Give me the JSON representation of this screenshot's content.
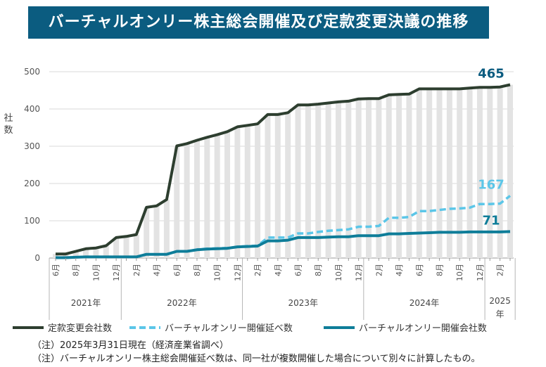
{
  "title": "バーチャルオンリー株主総会開催及び定款変更決議の推移",
  "notes": [
    "（注）2025年3月31日現在（経済産業省調べ）",
    "（注）バーチャルオンリー株主総会開催延べ数は、同一社が複数開催した場合について別々に計算したもの。"
  ],
  "chart_data": {
    "type": "line",
    "ylabel": "社数",
    "ylim": [
      0,
      500
    ],
    "yticks": [
      0,
      100,
      200,
      300,
      400,
      500
    ],
    "grid": true,
    "legend_position": "bottom",
    "x_months": [
      "2021-06",
      "2021-07",
      "2021-08",
      "2021-09",
      "2021-10",
      "2021-11",
      "2021-12",
      "2022-01",
      "2022-02",
      "2022-03",
      "2022-04",
      "2022-05",
      "2022-06",
      "2022-07",
      "2022-08",
      "2022-09",
      "2022-10",
      "2022-11",
      "2022-12",
      "2023-01",
      "2023-02",
      "2023-03",
      "2023-04",
      "2023-05",
      "2023-06",
      "2023-07",
      "2023-08",
      "2023-09",
      "2023-10",
      "2023-11",
      "2023-12",
      "2024-01",
      "2024-02",
      "2024-03",
      "2024-04",
      "2024-05",
      "2024-06",
      "2024-07",
      "2024-08",
      "2024-09",
      "2024-10",
      "2024-11",
      "2024-12",
      "2025-01",
      "2025-02",
      "2025-03"
    ],
    "tick_labels": [
      {
        "month": "2021-06",
        "label": "6月"
      },
      {
        "month": "2021-08",
        "label": "8月"
      },
      {
        "month": "2021-10",
        "label": "10月"
      },
      {
        "month": "2021-12",
        "label": "12月"
      },
      {
        "month": "2022-02",
        "label": "2月"
      },
      {
        "month": "2022-04",
        "label": "4月"
      },
      {
        "month": "2022-06",
        "label": "6月"
      },
      {
        "month": "2022-08",
        "label": "8月"
      },
      {
        "month": "2022-10",
        "label": "10月"
      },
      {
        "month": "2022-12",
        "label": "12月"
      },
      {
        "month": "2023-02",
        "label": "2月"
      },
      {
        "month": "2023-04",
        "label": "4月"
      },
      {
        "month": "2023-06",
        "label": "6月"
      },
      {
        "month": "2023-08",
        "label": "8月"
      },
      {
        "month": "2023-10",
        "label": "10月"
      },
      {
        "month": "2023-12",
        "label": "12月"
      },
      {
        "month": "2024-02",
        "label": "2月"
      },
      {
        "month": "2024-04",
        "label": "4月"
      },
      {
        "month": "2024-06",
        "label": "6月"
      },
      {
        "month": "2024-08",
        "label": "8月"
      },
      {
        "month": "2024-10",
        "label": "10月"
      },
      {
        "month": "2024-12",
        "label": "12月"
      },
      {
        "month": "2025-02",
        "label": "2月"
      }
    ],
    "year_groups": [
      {
        "label": "2021年",
        "start": "2021-06",
        "end": "2021-12"
      },
      {
        "label": "2022年",
        "start": "2022-01",
        "end": "2022-12"
      },
      {
        "label": "2023年",
        "start": "2023-01",
        "end": "2023-12"
      },
      {
        "label": "2024年",
        "start": "2024-01",
        "end": "2024-12"
      },
      {
        "label": "2025年",
        "start": "2025-01",
        "end": "2025-03"
      }
    ],
    "series": [
      {
        "name": "定款変更会社数",
        "color": "#2d3e2f",
        "style": "solid",
        "values": [
          11,
          11,
          18,
          25,
          27,
          33,
          55,
          58,
          63,
          136,
          140,
          157,
          301,
          307,
          316,
          324,
          331,
          339,
          352,
          356,
          360,
          385,
          385,
          390,
          411,
          411,
          413,
          416,
          419,
          421,
          427,
          428,
          428,
          438,
          439,
          440,
          454,
          454,
          454,
          454,
          454,
          456,
          458,
          458,
          459,
          465
        ],
        "end_label": "465"
      },
      {
        "name": "バーチャルオンリー開催延べ数",
        "color": "#5bc6e8",
        "style": "dashed",
        "values": [
          1,
          1,
          2,
          3,
          3,
          3,
          3,
          3,
          3,
          10,
          10,
          10,
          18,
          18,
          23,
          25,
          26,
          27,
          30,
          32,
          33,
          55,
          55,
          55,
          66,
          66,
          70,
          73,
          75,
          77,
          84,
          84,
          86,
          108,
          108,
          110,
          126,
          126,
          129,
          132,
          133,
          135,
          145,
          145,
          146,
          167
        ],
        "end_label": "167"
      },
      {
        "name": "バーチャルオンリー開催会社数",
        "color": "#0e7d99",
        "style": "solid",
        "values": [
          1,
          1,
          2,
          3,
          3,
          3,
          3,
          3,
          3,
          10,
          10,
          10,
          18,
          18,
          22,
          24,
          25,
          26,
          30,
          31,
          32,
          46,
          46,
          48,
          55,
          55,
          55,
          56,
          57,
          57,
          60,
          60,
          60,
          65,
          65,
          66,
          67,
          68,
          69,
          69,
          69,
          70,
          70,
          70,
          70,
          71
        ],
        "end_label": "71"
      }
    ]
  }
}
